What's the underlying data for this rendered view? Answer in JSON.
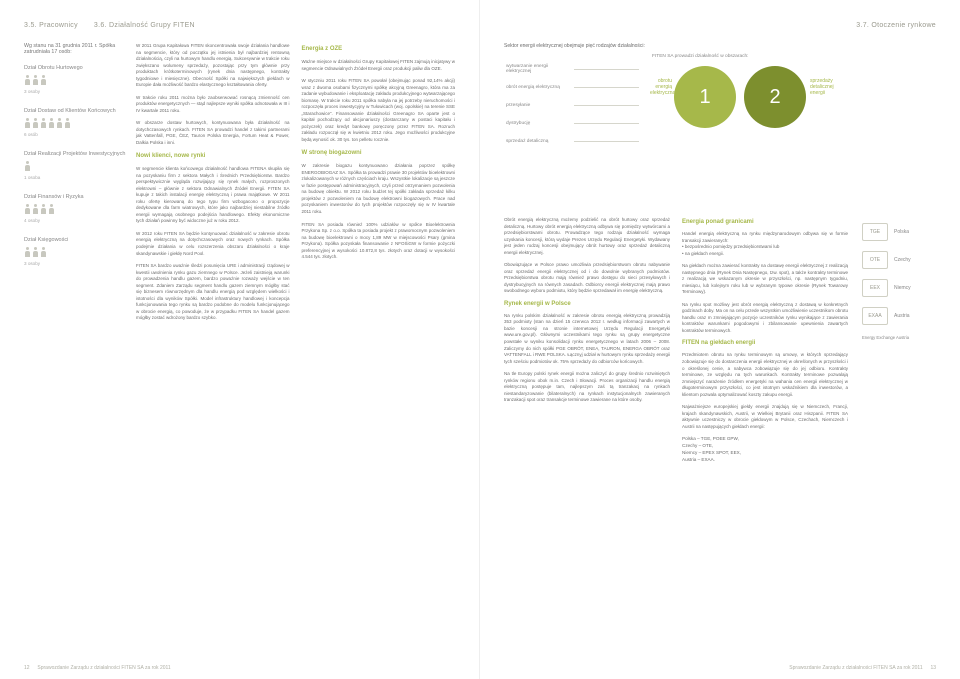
{
  "header_left": {
    "a": "3.5. Pracownicy",
    "b": "3.6. Działalność Grupy FITEN"
  },
  "header_right": {
    "a": "3.7. Otoczenie rynkowe"
  },
  "intro": "Wg stanu na 31 grudnia 2011 r. Spółka zatrudniała 17 osób:",
  "departments": [
    {
      "name": "Dział Obrotu Hurtowego",
      "count": 3,
      "label": "3 osoby"
    },
    {
      "name": "Dział Dostaw od Klientów Końcowych",
      "count": 6,
      "label": "6 osób"
    },
    {
      "name": "Dział Realizacji Projektów Inwestycyjnych",
      "count": 1,
      "label": "1 osoba"
    },
    {
      "name": "Dział Finansów i Ryzyka",
      "count": 4,
      "label": "4 osoby"
    },
    {
      "name": "Dział Księgowości",
      "count": 3,
      "label": "3 osoby"
    }
  ],
  "leftcol1": {
    "p1": "W 2011 Grupa Kapitałowa FITEN skoncentrowała swoje działania handlowe na segmencie, który od początku jej istnienia był najbardziej rentowną działalnością, czyli na hurtowym handlu energią. Sukcesywnie w trakcie roku zwiększano wolumeny sprzedaży, pozostając przy tym głównie przy produktach krótkoterminowych (rynek dnia następnego, kontrakty tygodniowe i miesięczne). Obecność Spółki na największych giełdach w Europie dała możliwość bardzo elastycznego kształtowania oferty.",
    "p2": "W trakcie roku 2011 można było zaobserwować rosnącą zmienność cen produktów energetycznych — stąd najlepsze wyniki spółka odnotowała w III i IV kwartale 2011 roku.",
    "p3": "W obszarze dostaw hurtowych, kontynuowana była działalność na dotychczasowych rynkach. FITEN SA prowadzi handel z takimi partnerami jak Vattenfall, PGE, ČEZ, Tauron Polska Energia, Fortum Heat & Power, Dalkia Polska i inni.",
    "h2": "Nowi klienci, nowe rynki",
    "p4": "W segmencie klienta końcowego działalność handlowa FITENA skupiła się na pozyskaniu firm z sektora Małych i Średnich Przedsiębiorstw. Bardzo perspektywicznie wygląda rozwijający się rynek małych, rozproszonych elektrowni – głównie z sektora Odnawialnych Źródeł Energii. FITEN SA kupuje z takich instalacji energię elektryczną i prawa majątkowe. W 2011 roku ofertę kierowaną do tego typu firm wzbogacono o propozycje dedykowane dla farm wiatrowych, które jako najbardziej niestabilne źródło energii wymagają osobnego podejścia handlowego. Efekty ekonomiczne tych działań powinny być widoczne już w roku 2012.",
    "p5": "W 2012 roku FITEN SA będzie kontynuować działalność w zakresie obrotu energią elektryczną na dotychczasowych oraz nowych rynkach. Spółka podejmie działania w celu rozszerzenia obszaru działalności o kraje skandynawskie i giełdę Nord Pool.",
    "p6": "FITEN SA bardzo uważnie śledzi posunięcia URE i administracji rządowej w kwestii uwolnienia rynku gazu ziemnego w Polsce. Jeżeli zaistnieją warunki do prowadzenia handlu gazem, bardzo poważnie rozważy wejście w ten segment. Zdaniem Zarządu segment handlu gazem ziemnym mógłby stać się biznesem równorzędnym dla handlu energią pod względem wielkości i istotności dla wyników Spółki. Model infrastruktury handlowej i koncepcja funkcjonowania tego rynku są bardzo podobne do modelu funkcjonującego w obrocie energią, co powoduje, że w przypadku FITEN SA handel gazem mógłby zostać wdrożony bardzo szybko."
  },
  "leftcol2": {
    "h1": "Energia z OZE",
    "p1": "Ważne miejsce w działalności Grupy Kapitałowej FITEN zajmują inicjatywy w segmencie Odnawialnych Źródeł Energii oraz produkcji paliw dla OZE.",
    "p2": "W styczniu 2011 roku FITEN SA powołał (obejmując ponad 92,14% akcji) wraz z dwoma osobami fizycznymi spółkę akcyjną Greenagro, która ma za zadanie wybudowanie i eksploatację zakładu produkcyjnego wytwarzającego biomasę. W trakcie roku 2011 spółka nabyła na jej potrzeby nieruchomości i rozpoczęła proces inwestycyjny w Tułowicach (woj. opolskie) na terenie SSE „Starachowice”. Finansowanie działalności Greenagro SA oparte jest o kapitał pochodzący od akcjonariuszy (dostarczany w postaci kapitału i pożyczek) oraz kredyt bankowy poręczony przez FITEN SA. Rozruch zakładu rozpoczął się w kwietniu 2012 roku. Jego możliwości produkcyjne będą wynosić ok. 30 tys. ton pelletu rocznie.",
    "h2": "W stronę biogazowni",
    "p3": "W zakresie biogazu kontynuowano działania poprzez spółkę ENERGOBIOGAZ SA. Spółka ta prowadzi prawie 30 projektów bioelektrowni zlokalizowanych w różnych częściach kraju. Wszystkie lokalizacje są jeszcze w fazie postępowań administracyjnych, czyli przed otrzymaniem pozwolenia na budowę obiektu. W 2012 roku budżet tej spółki zakłada sprzedaż kilku projektów z pozwoleniem na budowę elektrowni biogazowych. Prace nad pozyskaniem inwestorów do tych projektów rozpoczęły się w IV kwartale 2011 roku.",
    "p4": "FITEN SA posiada również 100% udziałów w spółce Bioelektrownia Przykona Sp. z o.o. Spółka ta posiada projekt z prawomocnym pozwoleniem na budowę bioelektrowni o mocy 1,89 MW w miejscowości Psary (gmina Przykona). Spółka pozyskała finansowanie z NFOŚiGW w formie pożyczki preferencyjnej w wysokości 10.872,8 tys. złotych oraz dotacji w wysokości 4.544 tys. złotych."
  },
  "right_intro": "Sektor energii elektrycznej obejmuje pięć rodzajów działalności:",
  "sectors": [
    "wytwarzanie energii elektrycznej",
    "obrót energią elektryczną",
    "przesyłanie",
    "dystrybucję",
    "sprzedaż detaliczną"
  ],
  "fiten_scope": "FITEN SA prowadzi działalność w obszarach:",
  "circle_labels": {
    "left": "obrotu energią elektryczną",
    "right": "sprzedaży detalicznej energii"
  },
  "circles": {
    "c1": "1",
    "c2": "2",
    "c1_color": "#a6b84a",
    "c2_color": "#7d8f2e"
  },
  "rightcol1": {
    "p1": "Obrót energią elektryczną możemy podzielić na obrót hurtowy oraz sprzedaż detaliczną. Hurtowy obrót energią elektryczną odbywa się pomiędzy wytwórcami a przedsiębiorstwami obrotu. Prowadzące tego rodzaju działalność wymaga uzyskania koncesji, którą wydaje Prezes Urzędu Regulacji Energetyki. Wydawany jest jeden rodzaj koncesji obejmujący obrót hurtowy oraz sprzedaż detaliczną energii elektrycznej.",
    "p2": "Obowiązujące w Polsce prawo umożliwia przedsiębiorstwom obrotu nabywanie oraz sprzedaż energii elektrycznej od i do dowolnie wybranych podmiotów. Przedsiębiorstwa obrotu mają również prawo dostępu do sieci przesyłowych i dystrybucyjnych na równych zasadach. Odbiorcy energii elektrycznej mają prawo swobodnego wyboru podmiotu, który będzie sprzedawał im energię elektryczną.",
    "h1": "Rynek energii w Polsce",
    "p3": "Na rynku polskim działalność w zakresie obrotu energią elektryczną prowadziją 353 podmioty (stan na dzień 15 czerwca 2012 r. według informacji zawartych w bazie koncesji na stronie internetowej Urzędu Regulacji Energetyki www.ure.gov.pl). Głównymi uczestnikami tego rynku są grupy energetyczne powstałe w wyniku konsolidacji rynku energetycznego w latach 2006 – 2008. Zaliczymy do nich spółki PGE OBRÓT, ENEA, TAURON, ENERGA OBRÓT oraz VATTENFALL i RWE POLSKA. Łącznyj udział w hurtowym rynku sprzedaży energii tych sześciu podmiotów ok. 75% sprzedaży do odbiorców końcowych.",
    "p4": "Na tle Europy polski rynek energii można zaliczyć do grupy średnio rozwiniętych rynków regionu obok m.in. Czech i Słowacji. Proces organizacji handlu energią elektryczną postępuje tam, najlepszym zaś tą tranzakacj na rynkach niestandaryzowanie (bilateralnych) na rynkach instytucjonalnych zawieranych tranzakacji spot oraz transakcje terminowe zawierane na które osoby."
  },
  "rightcol2": {
    "h1": "Energia ponad granicami",
    "p1": "Handel energią elektryczną na rynku międzynarodowym odbywa się w formie transakcji zawieranych:\n• bezpośrednio pomiędzy przedsiębiorstwami lub\n• na giełdach energii.",
    "p2": "Na giełdach można zawierać kontrakty na dostawę energii elektrycznej z realizacją następnego dnia (Rynek Dnia Następnego, tzw. spot), a także kontrakty terminowe z realizacją we wskazanym okresie w przyszłości, np. następnym tygodniu, miesiącu, lub kolejnym roku lub w wybranym typowe okresie (Rynek Towarowy Terminowy).",
    "p3": "Na rynku spot możliwy jest obrót energią elektryczną z dostawą w konkretnych godzinach doby. Ma on na celu przede wszystkim umożliwienie uczestnikom obrotu handlu oraz m zmniejającym pozycje uczestników rynku wynikające z zawierania kontraktów warunkami pogodowymi i zbilansowanie upewnienia zawartych kontraktów terminowych.",
    "h2": "FITEN na giełdach energii",
    "p4": "Przedmiotem obrotu na rynku terminowym są umowy, w których sprzedający zobowiązuje się do dostarczenia energii elektrycznej w określonych w przyszłości i o określonej cenie, a nabywca zobowiązuje się do jej odbioru. Kontrakty terminowe, ze względu na tych warunkach. Kontrakty terminowe pozwalają zmniejszyć narażenie źródłem energetyki na wahania cen energii elektrycznej w długoterminowym przyszłości, co jest istotnym wskaźnikiem dla inwestorów, a klientom pozwala optymalizować koszty zakupu energii.",
    "p5": "Najważniejsze europejskiej giełdy energii znajdują się w Niemczech, Francji, krajach skandynawskich, Austrii, w Wielkiej Brytanii oraz Hiszpanii. FITEN SA aktywnie uczestniczy w obrocie giełdowym w Polsce, Czechach, Niemczech i Austrii na następujących giełdach energii:"
  },
  "countries": [
    {
      "name": "Polska",
      "box": "TGE"
    },
    {
      "name": "Czechy",
      "box": "OTE"
    },
    {
      "name": "Niemcy",
      "box": "EEX"
    },
    {
      "name": "Austria",
      "box": "EXAA"
    }
  ],
  "exch": {
    "title": "Energy Exchange Austria",
    "lines": "Polska – TGE, POEE GPW,\nCzechy – OTE,\nNiemcy – EPEX SPOT, EEX,\nAustria – EXAA."
  },
  "folio": {
    "left_no": "12",
    "right_no": "13",
    "text": "Sprawozdanie Zarządu z działalności FITEN SA za rok 2011"
  }
}
